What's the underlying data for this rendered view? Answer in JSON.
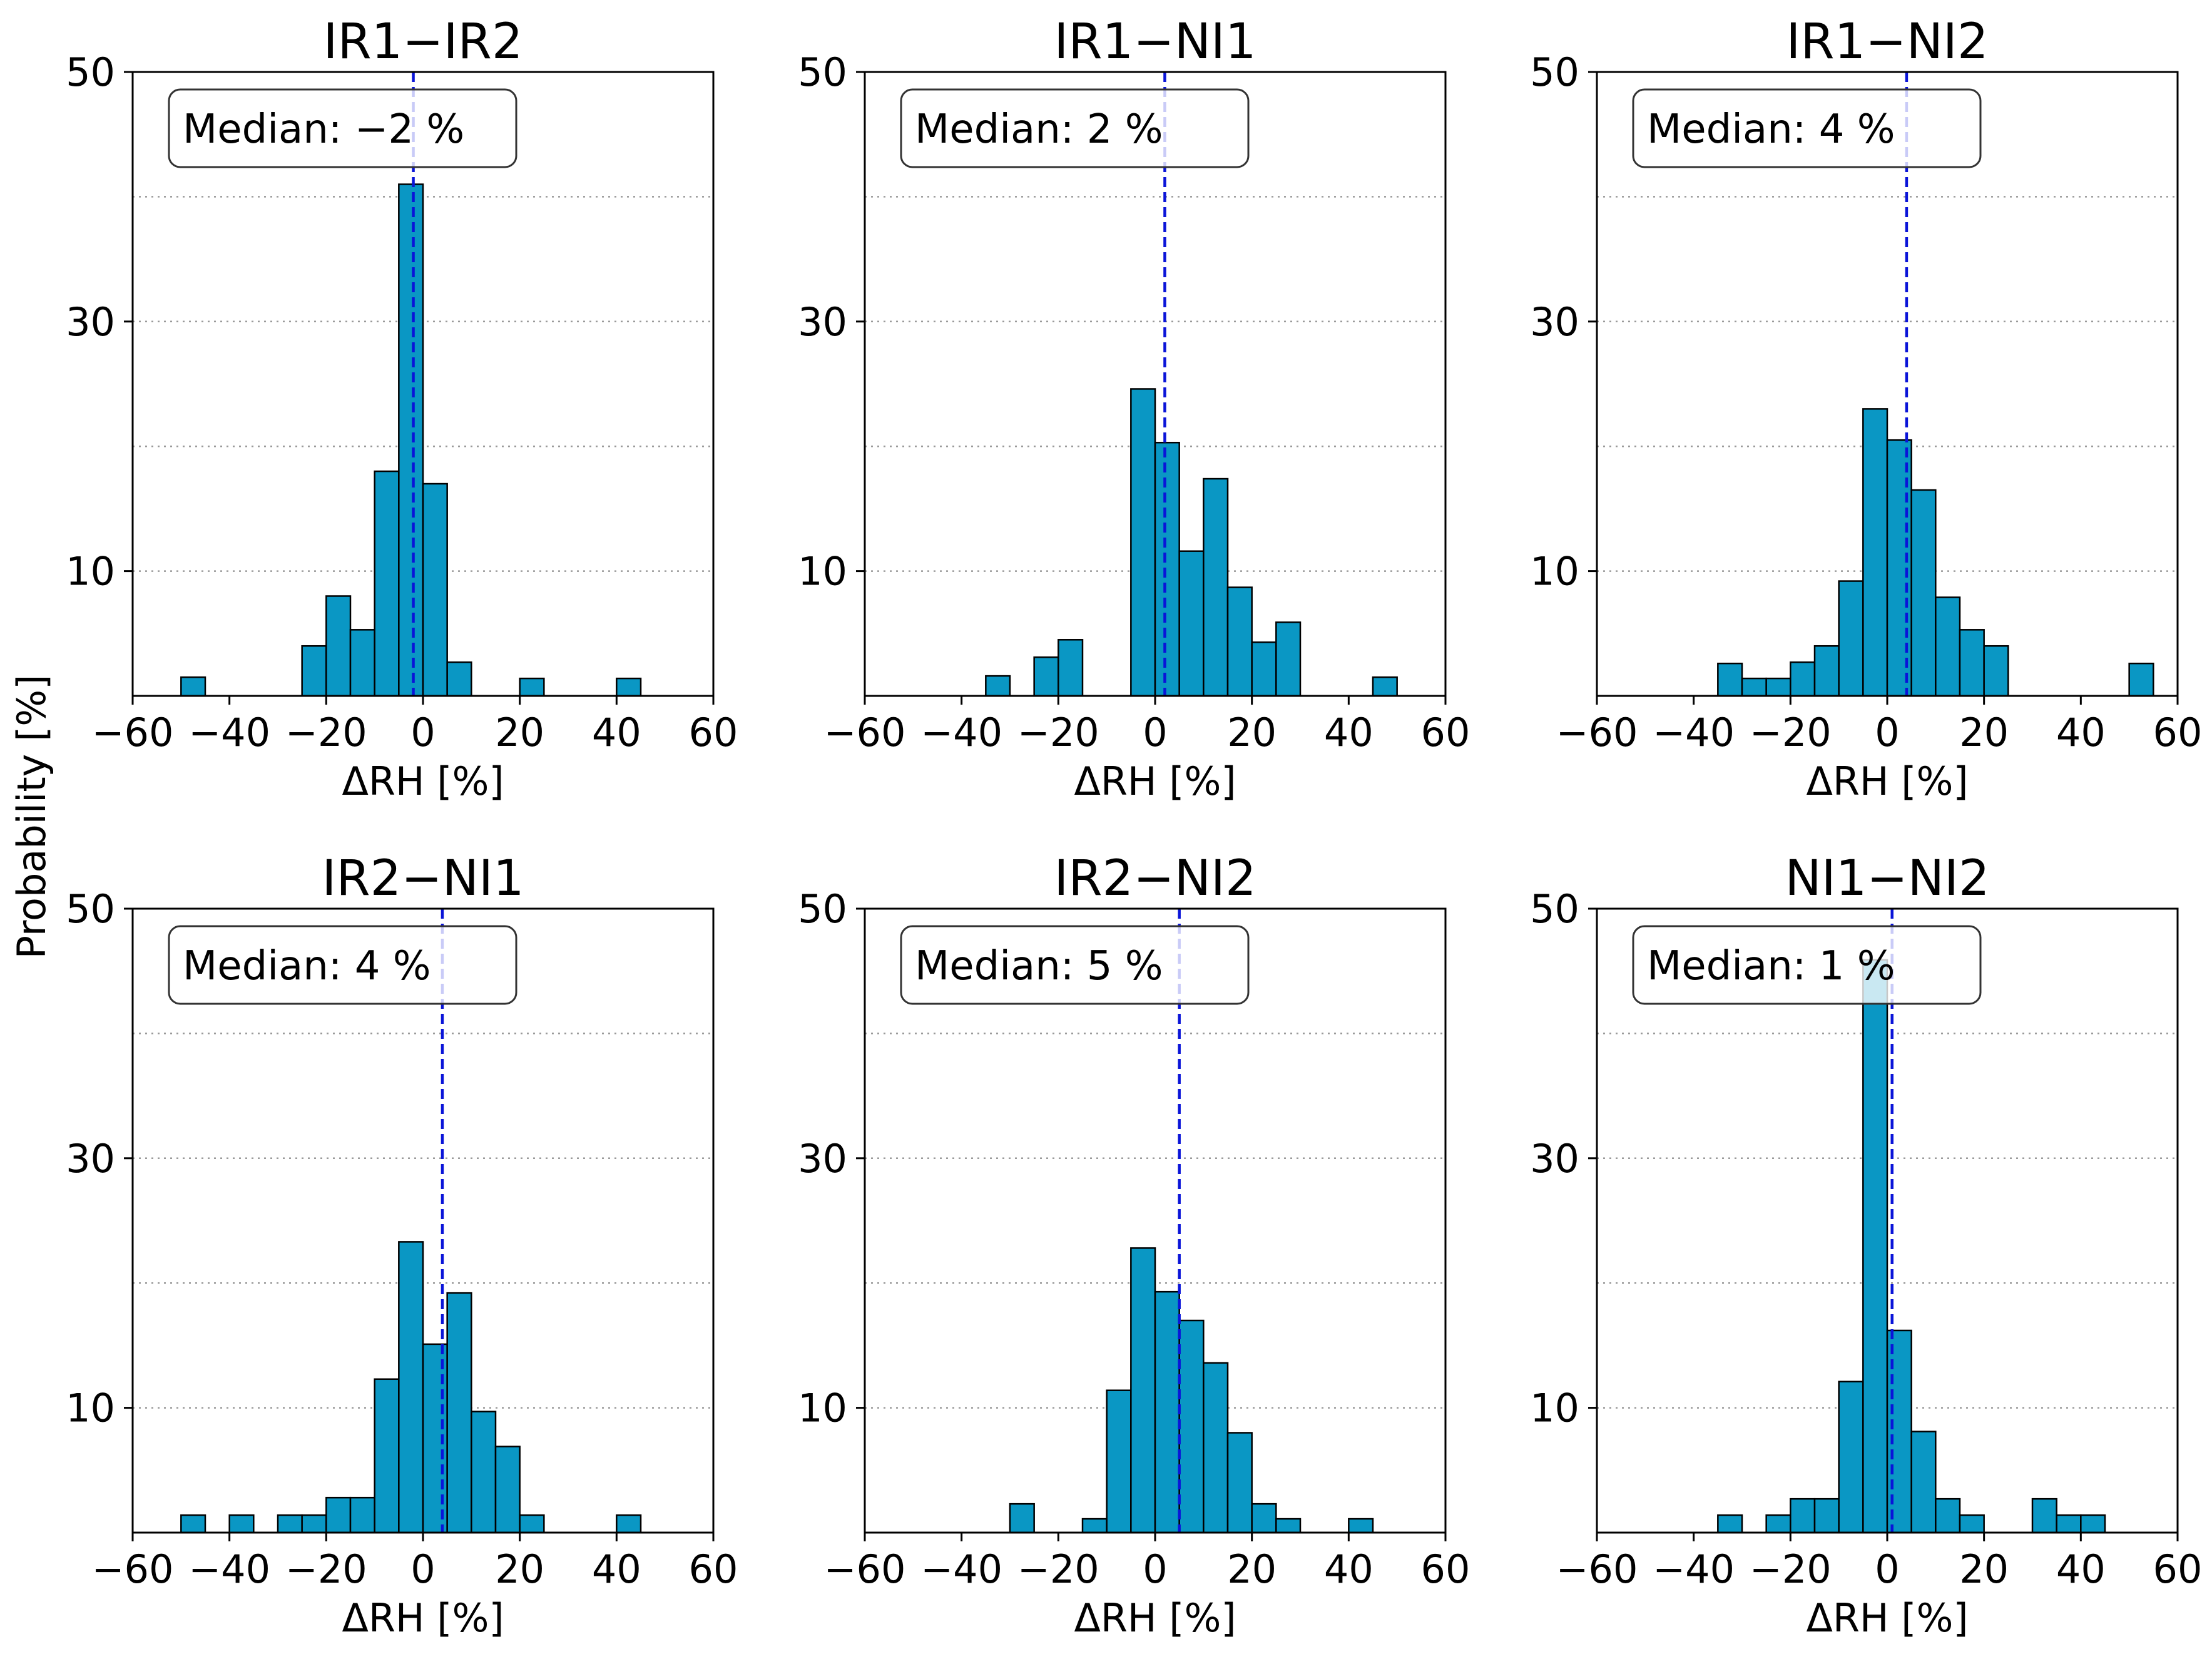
{
  "figure": {
    "ylabel": "Probability [%]",
    "xlabel": "ΔRH [%]"
  },
  "style": {
    "bar_fill": "#0a97c4",
    "bar_edge": "#000000",
    "median_line": "#0a14d8",
    "grid": "#9a9a9a",
    "box_edge": "#333333"
  },
  "chart_data": [
    {
      "type": "bar",
      "title": "IR1−IR2",
      "median_label": "Median: −2 %",
      "median": -2,
      "xlabel": "ΔRH [%]",
      "ylabel": "Probability [%]",
      "xlim": [
        -60,
        60
      ],
      "ylim": [
        0,
        50
      ],
      "yticks": [
        10,
        30,
        50
      ],
      "xticks": [
        -60,
        -40,
        -20,
        0,
        20,
        40,
        60
      ],
      "xtick_labels": [
        "−60",
        "−40",
        "−20",
        "0",
        "20",
        "40",
        "60"
      ],
      "bin_width": 5,
      "bins": [
        {
          "start": -50,
          "value": 1.5
        },
        {
          "start": -25,
          "value": 4.0
        },
        {
          "start": -20,
          "value": 8.0
        },
        {
          "start": -15,
          "value": 5.3
        },
        {
          "start": -10,
          "value": 18.0
        },
        {
          "start": -5,
          "value": 41.0
        },
        {
          "start": 0,
          "value": 17.0
        },
        {
          "start": 5,
          "value": 2.7
        },
        {
          "start": 20,
          "value": 1.4
        },
        {
          "start": 40,
          "value": 1.4
        }
      ]
    },
    {
      "type": "bar",
      "title": "IR1−NI1",
      "median_label": "Median: 2 %",
      "median": 2,
      "xlabel": "ΔRH [%]",
      "ylabel": "Probability [%]",
      "xlim": [
        -60,
        60
      ],
      "ylim": [
        0,
        50
      ],
      "yticks": [
        10,
        30,
        50
      ],
      "xticks": [
        -60,
        -40,
        -20,
        0,
        20,
        40,
        60
      ],
      "xtick_labels": [
        "−60",
        "−40",
        "−20",
        "0",
        "20",
        "40",
        "60"
      ],
      "bin_width": 5,
      "bins": [
        {
          "start": -35,
          "value": 1.6
        },
        {
          "start": -25,
          "value": 3.1
        },
        {
          "start": -20,
          "value": 4.5
        },
        {
          "start": -5,
          "value": 24.6
        },
        {
          "start": 0,
          "value": 20.3
        },
        {
          "start": 5,
          "value": 11.6
        },
        {
          "start": 10,
          "value": 17.4
        },
        {
          "start": 15,
          "value": 8.7
        },
        {
          "start": 20,
          "value": 4.3
        },
        {
          "start": 25,
          "value": 5.9
        },
        {
          "start": 45,
          "value": 1.5
        }
      ]
    },
    {
      "type": "bar",
      "title": "IR1−NI2",
      "median_label": "Median: 4 %",
      "median": 4,
      "xlabel": "ΔRH [%]",
      "ylabel": "Probability [%]",
      "xlim": [
        -60,
        60
      ],
      "ylim": [
        0,
        50
      ],
      "yticks": [
        10,
        30,
        50
      ],
      "xticks": [
        -60,
        -40,
        -20,
        0,
        20,
        40,
        60
      ],
      "xtick_labels": [
        "−60",
        "−40",
        "−20",
        "0",
        "20",
        "40",
        "60"
      ],
      "bin_width": 5,
      "bins": [
        {
          "start": -35,
          "value": 2.6
        },
        {
          "start": -30,
          "value": 1.4
        },
        {
          "start": -25,
          "value": 1.4
        },
        {
          "start": -20,
          "value": 2.7
        },
        {
          "start": -15,
          "value": 4.0
        },
        {
          "start": -10,
          "value": 9.2
        },
        {
          "start": -5,
          "value": 23.0
        },
        {
          "start": 0,
          "value": 20.5
        },
        {
          "start": 5,
          "value": 16.5
        },
        {
          "start": 10,
          "value": 7.9
        },
        {
          "start": 15,
          "value": 5.3
        },
        {
          "start": 20,
          "value": 4.0
        },
        {
          "start": 50,
          "value": 2.6
        }
      ]
    },
    {
      "type": "bar",
      "title": "IR2−NI1",
      "median_label": "Median: 4 %",
      "median": 4,
      "xlabel": "ΔRH [%]",
      "ylabel": "Probability [%]",
      "xlim": [
        -60,
        60
      ],
      "ylim": [
        0,
        50
      ],
      "yticks": [
        10,
        30,
        50
      ],
      "xticks": [
        -60,
        -40,
        -20,
        0,
        20,
        40,
        60
      ],
      "xtick_labels": [
        "−60",
        "−40",
        "−20",
        "0",
        "20",
        "40",
        "60"
      ],
      "bin_width": 5,
      "bins": [
        {
          "start": -50,
          "value": 1.4
        },
        {
          "start": -40,
          "value": 1.4
        },
        {
          "start": -30,
          "value": 1.4
        },
        {
          "start": -25,
          "value": 1.4
        },
        {
          "start": -20,
          "value": 2.8
        },
        {
          "start": -15,
          "value": 2.8
        },
        {
          "start": -10,
          "value": 12.3
        },
        {
          "start": -5,
          "value": 23.3
        },
        {
          "start": 0,
          "value": 15.1
        },
        {
          "start": 5,
          "value": 19.2
        },
        {
          "start": 10,
          "value": 9.7
        },
        {
          "start": 15,
          "value": 6.9
        },
        {
          "start": 20,
          "value": 1.4
        },
        {
          "start": 40,
          "value": 1.4
        }
      ]
    },
    {
      "type": "bar",
      "title": "IR2−NI2",
      "median_label": "Median: 5 %",
      "median": 5,
      "xlabel": "ΔRH [%]",
      "ylabel": "Probability [%]",
      "xlim": [
        -60,
        60
      ],
      "ylim": [
        0,
        50
      ],
      "yticks": [
        10,
        30,
        50
      ],
      "xticks": [
        -60,
        -40,
        -20,
        0,
        20,
        40,
        60
      ],
      "xtick_labels": [
        "−60",
        "−40",
        "−20",
        "0",
        "20",
        "40",
        "60"
      ],
      "bin_width": 5,
      "bins": [
        {
          "start": -30,
          "value": 2.3
        },
        {
          "start": -15,
          "value": 1.1
        },
        {
          "start": -10,
          "value": 11.4
        },
        {
          "start": -5,
          "value": 22.8
        },
        {
          "start": 0,
          "value": 19.3
        },
        {
          "start": 5,
          "value": 17.0
        },
        {
          "start": 10,
          "value": 13.6
        },
        {
          "start": 15,
          "value": 8.0
        },
        {
          "start": 20,
          "value": 2.3
        },
        {
          "start": 25,
          "value": 1.1
        },
        {
          "start": 40,
          "value": 1.1
        }
      ]
    },
    {
      "type": "bar",
      "title": "NI1−NI2",
      "median_label": "Median: 1 %",
      "median": 1,
      "xlabel": "ΔRH [%]",
      "ylabel": "Probability [%]",
      "xlim": [
        -60,
        60
      ],
      "ylim": [
        0,
        50
      ],
      "yticks": [
        10,
        30,
        50
      ],
      "xticks": [
        -60,
        -40,
        -20,
        0,
        20,
        40,
        60
      ],
      "xtick_labels": [
        "−60",
        "−40",
        "−20",
        "0",
        "20",
        "40",
        "60"
      ],
      "bin_width": 5,
      "bins": [
        {
          "start": -35,
          "value": 1.4
        },
        {
          "start": -25,
          "value": 1.4
        },
        {
          "start": -20,
          "value": 2.7
        },
        {
          "start": -15,
          "value": 2.7
        },
        {
          "start": -10,
          "value": 12.1
        },
        {
          "start": -5,
          "value": 45.9
        },
        {
          "start": 0,
          "value": 16.2
        },
        {
          "start": 5,
          "value": 8.1
        },
        {
          "start": 10,
          "value": 2.7
        },
        {
          "start": 15,
          "value": 1.4
        },
        {
          "start": 30,
          "value": 2.7
        },
        {
          "start": 35,
          "value": 1.4
        },
        {
          "start": 40,
          "value": 1.4
        }
      ]
    }
  ]
}
